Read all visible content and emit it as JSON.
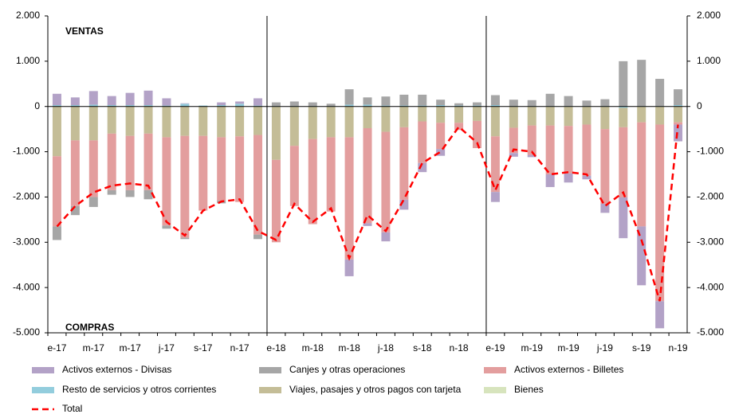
{
  "chart_data": {
    "type": "bar",
    "annotations": [
      "VENTAS",
      "COMPRAS"
    ],
    "categories": [
      "e-17",
      null,
      "m-17",
      null,
      "m-17",
      null,
      "j-17",
      null,
      "s-17",
      null,
      "n-17",
      null,
      "e-18",
      null,
      "m-18",
      null,
      "m-18",
      null,
      "j-18",
      null,
      "s-18",
      null,
      "n-18",
      null,
      "e-19",
      null,
      "m-19",
      null,
      "m-19",
      null,
      "j-19",
      null,
      "s-19",
      null,
      "n-19"
    ],
    "ylim": [
      -5000,
      2000
    ],
    "yticks": [
      {
        "value": -5000,
        "label": "-5.000"
      },
      {
        "value": -4000,
        "label": "-4.000"
      },
      {
        "value": -3000,
        "label": "-3.000"
      },
      {
        "value": -2000,
        "label": "-2.000"
      },
      {
        "value": -1000,
        "label": "-1.000"
      },
      0,
      {
        "value": 1000,
        "label": "1.000"
      },
      {
        "value": 2000,
        "label": "2.000"
      }
    ],
    "series": [
      {
        "name": "Activos externos - Divisas",
        "color": "#b3a2c7",
        "values": [
          250,
          170,
          300,
          200,
          270,
          320,
          160,
          10,
          0,
          60,
          50,
          160,
          0,
          0,
          0,
          0,
          -370,
          -60,
          -200,
          -220,
          -200,
          -150,
          0,
          0,
          -220,
          -80,
          -50,
          -280,
          -200,
          -80,
          -200,
          -900,
          -1300,
          -600,
          -370
        ]
      },
      {
        "name": "Canjes y otras operaciones",
        "color": "#a6a6a6",
        "values": [
          -300,
          -200,
          -220,
          -100,
          -150,
          -200,
          -70,
          -30,
          0,
          -60,
          0,
          -100,
          80,
          100,
          80,
          50,
          340,
          160,
          200,
          240,
          240,
          120,
          50,
          70,
          220,
          140,
          130,
          270,
          220,
          120,
          150,
          1000,
          1020,
          600,
          350
        ]
      },
      {
        "name": "Activos externos - Billetes",
        "color": "#e39e9e",
        "values": [
          -1550,
          -1450,
          -1250,
          -1250,
          -1200,
          -1250,
          -1950,
          -2250,
          -1650,
          -1400,
          -1450,
          -2200,
          -1820,
          -1330,
          -1880,
          -1640,
          -2700,
          -2100,
          -2220,
          -1600,
          -920,
          -580,
          -160,
          -600,
          -1230,
          -560,
          -650,
          -1080,
          -1050,
          -1130,
          -1650,
          -1550,
          -2300,
          -3900,
          -50
        ]
      },
      {
        "name": "Resto de servicios y otros corrientes",
        "color": "#93cddd",
        "values": [
          30,
          30,
          40,
          30,
          30,
          30,
          20,
          60,
          20,
          30,
          60,
          20,
          10,
          10,
          10,
          10,
          40,
          40,
          20,
          20,
          20,
          30,
          20,
          20,
          30,
          10,
          10,
          10,
          10,
          10,
          10,
          -30,
          10,
          10,
          30
        ]
      },
      {
        "name": "Viajes, pasajes y otros pagos con tarjeta",
        "color": "#c4bd97",
        "values": [
          -1100,
          -750,
          -750,
          -600,
          -650,
          -600,
          -680,
          -650,
          -650,
          -680,
          -660,
          -630,
          -1180,
          -870,
          -720,
          -680,
          -680,
          -480,
          -560,
          -460,
          -330,
          -360,
          -360,
          -320,
          -660,
          -470,
          -420,
          -420,
          -430,
          -400,
          -500,
          -430,
          -350,
          -400,
          -350
        ]
      },
      {
        "name": "Bienes",
        "color": "#d7e4bd",
        "values": [
          0,
          0,
          0,
          0,
          0,
          0,
          0,
          0,
          0,
          0,
          0,
          0,
          0,
          0,
          0,
          0,
          0,
          0,
          0,
          0,
          0,
          0,
          0,
          0,
          0,
          0,
          0,
          0,
          0,
          0,
          0,
          0,
          0,
          0,
          0
        ]
      },
      {
        "name": "Total",
        "color": "#ff0000",
        "line": true,
        "values": [
          -2650,
          -2200,
          -1900,
          -1750,
          -1700,
          -1750,
          -2550,
          -2850,
          -2300,
          -2100,
          -2050,
          -2750,
          -2950,
          -2150,
          -2550,
          -2250,
          -3350,
          -2400,
          -2750,
          -2050,
          -1250,
          -1000,
          -450,
          -800,
          -1850,
          -950,
          -1000,
          -1500,
          -1450,
          -1500,
          -2200,
          -1900,
          -2950,
          -4300,
          -400
        ]
      }
    ]
  }
}
